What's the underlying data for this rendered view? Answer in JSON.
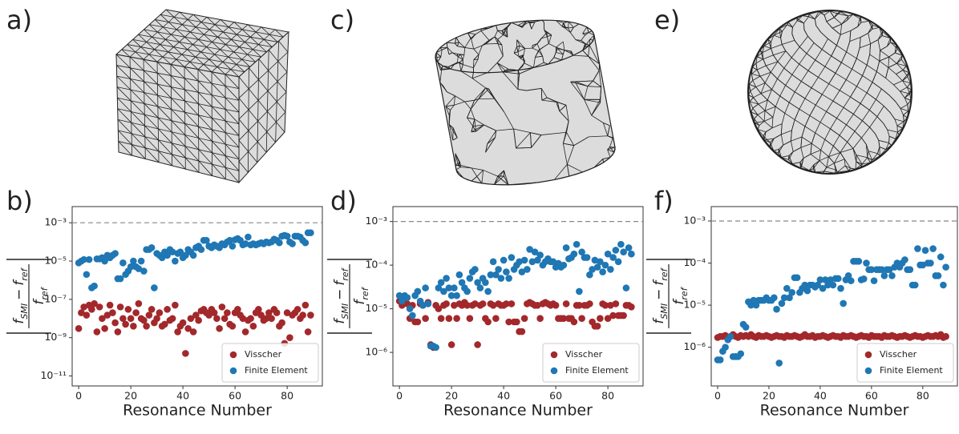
{
  "panel_labels": [
    "a)",
    "c)",
    "e)",
    "b)",
    "d)",
    "f)"
  ],
  "chart_data": [
    {
      "type": "scatter",
      "xlabel": "Resonance Number",
      "ylabel": {
        "numerator": [
          "f",
          "SMI",
          "−",
          "f",
          "ref"
        ],
        "denominator": [
          "f",
          "ref"
        ]
      },
      "x": [
        0,
        1,
        2,
        3,
        4,
        5,
        6,
        7,
        8,
        9,
        10,
        11,
        12,
        13,
        14,
        15,
        16,
        17,
        18,
        19,
        20,
        21,
        22,
        23,
        24,
        25,
        26,
        27,
        28,
        29,
        30,
        31,
        32,
        33,
        34,
        35,
        36,
        37,
        38,
        39,
        40,
        41,
        42,
        43,
        44,
        45,
        46,
        47,
        48,
        49,
        50,
        51,
        52,
        53,
        54,
        55,
        56,
        57,
        58,
        59,
        60,
        61,
        62,
        63,
        64,
        65,
        66,
        67,
        68,
        69,
        70,
        71,
        72,
        73,
        74,
        75,
        76,
        77,
        78,
        79,
        80,
        81,
        82,
        83,
        84,
        85,
        86,
        87,
        88,
        89
      ],
      "xlim": [
        -2.5,
        93.5
      ],
      "xticks": [
        0,
        20,
        40,
        60,
        80
      ],
      "ylim": [
        3e-12,
        0.007
      ],
      "log_y": true,
      "yticks": [
        {
          "value": 0.001,
          "label": "10⁻³"
        },
        {
          "value": 1e-05,
          "label": "10⁻⁵"
        },
        {
          "value": 1e-07,
          "label": "10⁻⁷"
        },
        {
          "value": 1e-09,
          "label": "10⁻⁹"
        },
        {
          "value": 1e-11,
          "label": "10⁻¹¹"
        }
      ],
      "reference_line": 0.001,
      "legend": "lower right",
      "series": [
        {
          "name": "Visscher",
          "color": "#a3282b",
          "values": [
            3e-09,
            2e-08,
            4e-08,
            1.5e-08,
            5e-08,
            3e-08,
            6e-08,
            2e-09,
            4e-08,
            1e-08,
            3e-09,
            1.5e-08,
            5e-08,
            2e-08,
            6e-09,
            2e-09,
            4e-08,
            1e-08,
            5e-09,
            3e-08,
            1e-08,
            4e-09,
            2e-08,
            6e-08,
            1e-08,
            8e-09,
            4e-09,
            1.5e-08,
            3e-08,
            6e-09,
            1e-08,
            2e-08,
            4e-09,
            5e-09,
            3e-08,
            8e-09,
            1e-08,
            5e-08,
            2e-09,
            4e-09,
            6e-09,
            1.5e-10,
            3e-09,
            1e-08,
            2e-09,
            1.5e-08,
            8e-09,
            2.5e-08,
            3e-08,
            2e-08,
            1.5e-08,
            3e-08,
            2e-08,
            1e-08,
            3e-09,
            4e-08,
            1e-08,
            2e-08,
            5e-09,
            4e-09,
            2e-08,
            3e-08,
            1.5e-08,
            1e-08,
            2e-09,
            8e-09,
            1e-08,
            4e-09,
            2e-08,
            3e-08,
            1.5e-08,
            8e-09,
            1e-08,
            2e-08,
            1e-08,
            3e-08,
            2e-08,
            4e-09,
            6e-09,
            5e-10,
            2e-08,
            1e-09,
            1.5e-08,
            2e-08,
            3e-08,
            1e-08,
            1.5e-08,
            5e-08,
            2e-09,
            1.5e-08
          ]
        },
        {
          "name": "Finite Element",
          "color": "#1f77b4",
          "values": [
            8e-06,
            1e-05,
            1.2e-05,
            2e-06,
            1.2e-05,
            4e-07,
            5e-07,
            1.3e-05,
            1.3e-05,
            1.5e-05,
            1e-05,
            2e-05,
            1.5e-05,
            2e-05,
            2.5e-05,
            1.2e-06,
            1.2e-06,
            8e-06,
            2e-06,
            3e-06,
            5e-06,
            1e-05,
            5e-06,
            4e-06,
            1e-05,
            3e-06,
            4e-05,
            4e-05,
            5e-05,
            4e-07,
            2.5e-05,
            2e-05,
            1.5e-05,
            3e-05,
            2e-05,
            4e-05,
            3e-05,
            1e-05,
            2.5e-05,
            3e-05,
            1.5e-05,
            2e-05,
            4e-05,
            3e-05,
            2e-05,
            5e-05,
            6e-05,
            4e-05,
            0.00012,
            0.00012,
            6e-05,
            5e-05,
            7e-05,
            6e-05,
            5e-05,
            8e-05,
            7e-05,
            0.0001,
            0.00012,
            6e-05,
            0.00013,
            0.00015,
            0.00012,
            7e-05,
            8e-05,
            0.00018,
            7e-05,
            8e-05,
            7e-05,
            8e-05,
            9e-05,
            8e-05,
            0.0001,
            9e-05,
            0.0001,
            0.00014,
            0.00012,
            9e-05,
            0.0002,
            0.00022,
            0.0002,
            0.0001,
            8e-05,
            0.0002,
            0.0002,
            0.00018,
            0.00012,
            9e-05,
            0.0003,
            0.0003
          ]
        }
      ]
    },
    {
      "type": "scatter",
      "xlabel": "Resonance Number",
      "ylabel": {
        "numerator": [
          "f",
          "SMI",
          "−",
          "f",
          "ref"
        ],
        "denominator": [
          "f",
          "ref"
        ]
      },
      "x": [
        0,
        1,
        2,
        3,
        4,
        5,
        6,
        7,
        8,
        9,
        10,
        11,
        12,
        13,
        14,
        15,
        16,
        17,
        18,
        19,
        20,
        21,
        22,
        23,
        24,
        25,
        26,
        27,
        28,
        29,
        30,
        31,
        32,
        33,
        34,
        35,
        36,
        37,
        38,
        39,
        40,
        41,
        42,
        43,
        44,
        45,
        46,
        47,
        48,
        49,
        50,
        51,
        52,
        53,
        54,
        55,
        56,
        57,
        58,
        59,
        60,
        61,
        62,
        63,
        64,
        65,
        66,
        67,
        68,
        69,
        70,
        71,
        72,
        73,
        74,
        75,
        76,
        77,
        78,
        79,
        80,
        81,
        82,
        83,
        84,
        85,
        86,
        87,
        88,
        89
      ],
      "xlim": [
        -2.5,
        93.5
      ],
      "xticks": [
        0,
        20,
        40,
        60,
        80
      ],
      "ylim": [
        1.7e-07,
        0.0022
      ],
      "log_y": true,
      "yticks": [
        {
          "value": 0.001,
          "label": "10⁻³"
        },
        {
          "value": 0.0001,
          "label": "10⁻⁴"
        },
        {
          "value": 1e-05,
          "label": "10⁻⁵"
        },
        {
          "value": 1e-06,
          "label": "10⁻⁶"
        }
      ],
      "reference_line": 0.001,
      "legend": "lower right",
      "series": [
        {
          "name": "Visscher",
          "color": "#a3282b",
          "values": [
            1.5e-05,
            1.2e-05,
            1.4e-05,
            1.3e-05,
            6e-06,
            1.2e-05,
            5e-06,
            5e-06,
            1.3e-05,
            1.2e-05,
            6e-06,
            1.4e-05,
            1.5e-06,
            1.3e-06,
            1.2e-05,
            1e-05,
            6e-06,
            1.2e-05,
            1.3e-05,
            6e-06,
            1.5e-06,
            1.2e-05,
            6e-06,
            1.3e-05,
            1.2e-05,
            1.4e-05,
            1.2e-05,
            6e-06,
            1.2e-05,
            1.3e-05,
            1.5e-06,
            1.2e-05,
            1.3e-05,
            6e-06,
            5e-06,
            1.3e-05,
            1.2e-05,
            6e-06,
            1.3e-05,
            1.2e-05,
            1.2e-05,
            1.3e-05,
            5e-06,
            1.3e-05,
            5e-06,
            5e-06,
            3e-06,
            3e-06,
            6e-06,
            1.3e-05,
            1.4e-05,
            1.3e-05,
            1.2e-05,
            1.2e-05,
            6e-06,
            1.3e-05,
            1.4e-05,
            1.3e-05,
            1.2e-05,
            1.3e-05,
            1.2e-05,
            6e-06,
            6e-06,
            6e-06,
            1.3e-05,
            6e-06,
            6e-06,
            5e-06,
            1.2e-05,
            1.2e-05,
            6e-06,
            1.2e-05,
            1.2e-05,
            1.3e-05,
            5e-06,
            4e-06,
            4e-06,
            6e-06,
            1.3e-05,
            1.2e-05,
            6e-06,
            1.2e-05,
            7e-06,
            1.3e-05,
            7e-06,
            7e-06,
            7e-06,
            1.2e-05,
            1.2e-05,
            1.1e-05
          ]
        },
        {
          "name": "Finite Element",
          "color": "#1f77b4",
          "values": [
            2e-05,
            1.5e-05,
            2e-05,
            1.8e-05,
            1e-05,
            7e-06,
            2e-05,
            2.5e-05,
            1.5e-05,
            1.2e-05,
            3e-05,
            1.3e-05,
            1.4e-06,
            1.4e-06,
            1.3e-06,
            3e-05,
            4e-05,
            2.5e-05,
            5e-05,
            3e-05,
            2e-05,
            3e-05,
            2e-05,
            6e-05,
            4e-05,
            3e-05,
            2.5e-05,
            5e-05,
            7e-05,
            8e-05,
            4e-05,
            3e-05,
            5e-05,
            4e-05,
            2.5e-05,
            6e-05,
            0.00012,
            6e-05,
            8e-05,
            5e-05,
            0.00013,
            7e-05,
            5e-05,
            0.00015,
            8e-05,
            0.0001,
            0.00012,
            7e-05,
            0.00013,
            8e-05,
            0.00023,
            0.00012,
            0.0002,
            0.00013,
            0.00017,
            0.0001,
            0.00012,
            0.00014,
            0.00012,
            0.00012,
            9e-05,
            0.00011,
            9e-05,
            0.0001,
            0.00025,
            0.00014,
            0.00015,
            0.00018,
            0.0003,
            2.5e-05,
            0.0002,
            0.00015,
            0.00015,
            6e-05,
            8e-05,
            0.00013,
            9e-05,
            0.00012,
            7e-05,
            0.0001,
            0.00018,
            8e-05,
            0.00015,
            0.00022,
            0.00012,
            0.0003,
            0.0002,
            3e-05,
            0.00025,
            0.00018
          ]
        }
      ]
    },
    {
      "type": "scatter",
      "xlabel": "Resonance Number",
      "ylabel": {
        "numerator": [
          "f",
          "SMI",
          "−",
          "f",
          "ref"
        ],
        "denominator": [
          "f",
          "ref"
        ]
      },
      "x": [
        0,
        1,
        2,
        3,
        4,
        5,
        6,
        7,
        8,
        9,
        10,
        11,
        12,
        13,
        14,
        15,
        16,
        17,
        18,
        19,
        20,
        21,
        22,
        23,
        24,
        25,
        26,
        27,
        28,
        29,
        30,
        31,
        32,
        33,
        34,
        35,
        36,
        37,
        38,
        39,
        40,
        41,
        42,
        43,
        44,
        45,
        46,
        47,
        48,
        49,
        50,
        51,
        52,
        53,
        54,
        55,
        56,
        57,
        58,
        59,
        60,
        61,
        62,
        63,
        64,
        65,
        66,
        67,
        68,
        69,
        70,
        71,
        72,
        73,
        74,
        75,
        76,
        77,
        78,
        79,
        80,
        81,
        82,
        83,
        84,
        85,
        86,
        87,
        88,
        89
      ],
      "xlim": [
        -2.5,
        93.5
      ],
      "xticks": [
        0,
        20,
        40,
        60,
        80
      ],
      "ylim": [
        1.2e-07,
        0.0022
      ],
      "log_y": true,
      "yticks": [
        {
          "value": 0.001,
          "label": "10⁻³"
        },
        {
          "value": 0.0001,
          "label": "10⁻⁴"
        },
        {
          "value": 1e-05,
          "label": "10⁻⁵"
        },
        {
          "value": 1e-06,
          "label": "10⁻⁶"
        }
      ],
      "reference_line": 0.001,
      "legend": "lower right",
      "series": [
        {
          "name": "Visscher",
          "color": "#a3282b",
          "values": [
            1.7e-06,
            1.8e-06,
            1.8e-06,
            1.9e-06,
            1.7e-06,
            1.8e-06,
            2e-06,
            1.8e-06,
            1.7e-06,
            1.9e-06,
            1.8e-06,
            1.9e-06,
            1.8e-06,
            2e-06,
            1.8e-06,
            1.7e-06,
            1.9e-06,
            1.8e-06,
            1.8e-06,
            1.9e-06,
            1.8e-06,
            1.7e-06,
            1.8e-06,
            1.9e-06,
            1.8e-06,
            1.8e-06,
            1.7e-06,
            1.9e-06,
            1.8e-06,
            1.8e-06,
            1.9e-06,
            1.8e-06,
            1.7e-06,
            1.8e-06,
            2e-06,
            1.8e-06,
            1.8e-06,
            1.9e-06,
            1.7e-06,
            1.8e-06,
            1.8e-06,
            1.9e-06,
            1.8e-06,
            1.7e-06,
            1.8e-06,
            1.9e-06,
            1.8e-06,
            1.8e-06,
            1.7e-06,
            1.9e-06,
            1.8e-06,
            1.8e-06,
            1.9e-06,
            1.8e-06,
            1.7e-06,
            1.8e-06,
            1.9e-06,
            1.8e-06,
            1.8e-06,
            1.7e-06,
            1.9e-06,
            1.8e-06,
            1.8e-06,
            1.8e-06,
            1.7e-06,
            1.9e-06,
            1.8e-06,
            1.8e-06,
            1.9e-06,
            1.8e-06,
            1.7e-06,
            1.8e-06,
            1.8e-06,
            1.9e-06,
            1.8e-06,
            1.7e-06,
            1.8e-06,
            1.9e-06,
            1.8e-06,
            1.8e-06,
            1.7e-06,
            1.8e-06,
            1.9e-06,
            1.8e-06,
            1.8e-06,
            1.9e-06,
            1.8e-06,
            2e-06,
            1.7e-06,
            1.8e-06
          ]
        },
        {
          "name": "Finite Element",
          "color": "#1f77b4",
          "values": [
            5e-07,
            5e-07,
            8e-07,
            1e-06,
            1.5e-06,
            1.8e-06,
            6e-07,
            6e-07,
            6e-07,
            7e-07,
            3.5e-06,
            3e-06,
            1.2e-05,
            1e-05,
            1.3e-05,
            1e-05,
            1.3e-05,
            1.3e-05,
            1.3e-05,
            1.5e-05,
            1.3e-05,
            1.3e-05,
            1.5e-05,
            8e-06,
            4.2e-07,
            1.1e-05,
            1.5e-05,
            2.5e-05,
            1.5e-05,
            2e-05,
            4.5e-05,
            4.5e-05,
            2e-05,
            2.5e-05,
            3e-05,
            2.2e-05,
            3e-05,
            3e-05,
            2.7e-05,
            3e-05,
            4e-05,
            2.5e-05,
            4e-05,
            3e-05,
            4e-05,
            3e-05,
            4.3e-05,
            4.3e-05,
            2.5e-05,
            1.1e-05,
            4e-05,
            5e-05,
            3.8e-05,
            0.00011,
            0.00011,
            0.00011,
            4e-05,
            4.2e-05,
            0.0001,
            7e-05,
            7e-05,
            3.8e-05,
            7e-05,
            7e-05,
            7e-05,
            5e-05,
            7e-05,
            7e-05,
            5e-05,
            8e-05,
            0.0001,
            8e-05,
            0.0001,
            0.00012,
            7e-05,
            7e-05,
            3e-05,
            3e-05,
            0.00022,
            9e-05,
            9e-05,
            0.0002,
            0.0001,
            0.0001,
            0.00022,
            5e-05,
            5e-05,
            0.00014,
            3e-05,
            8e-05
          ]
        }
      ]
    }
  ]
}
